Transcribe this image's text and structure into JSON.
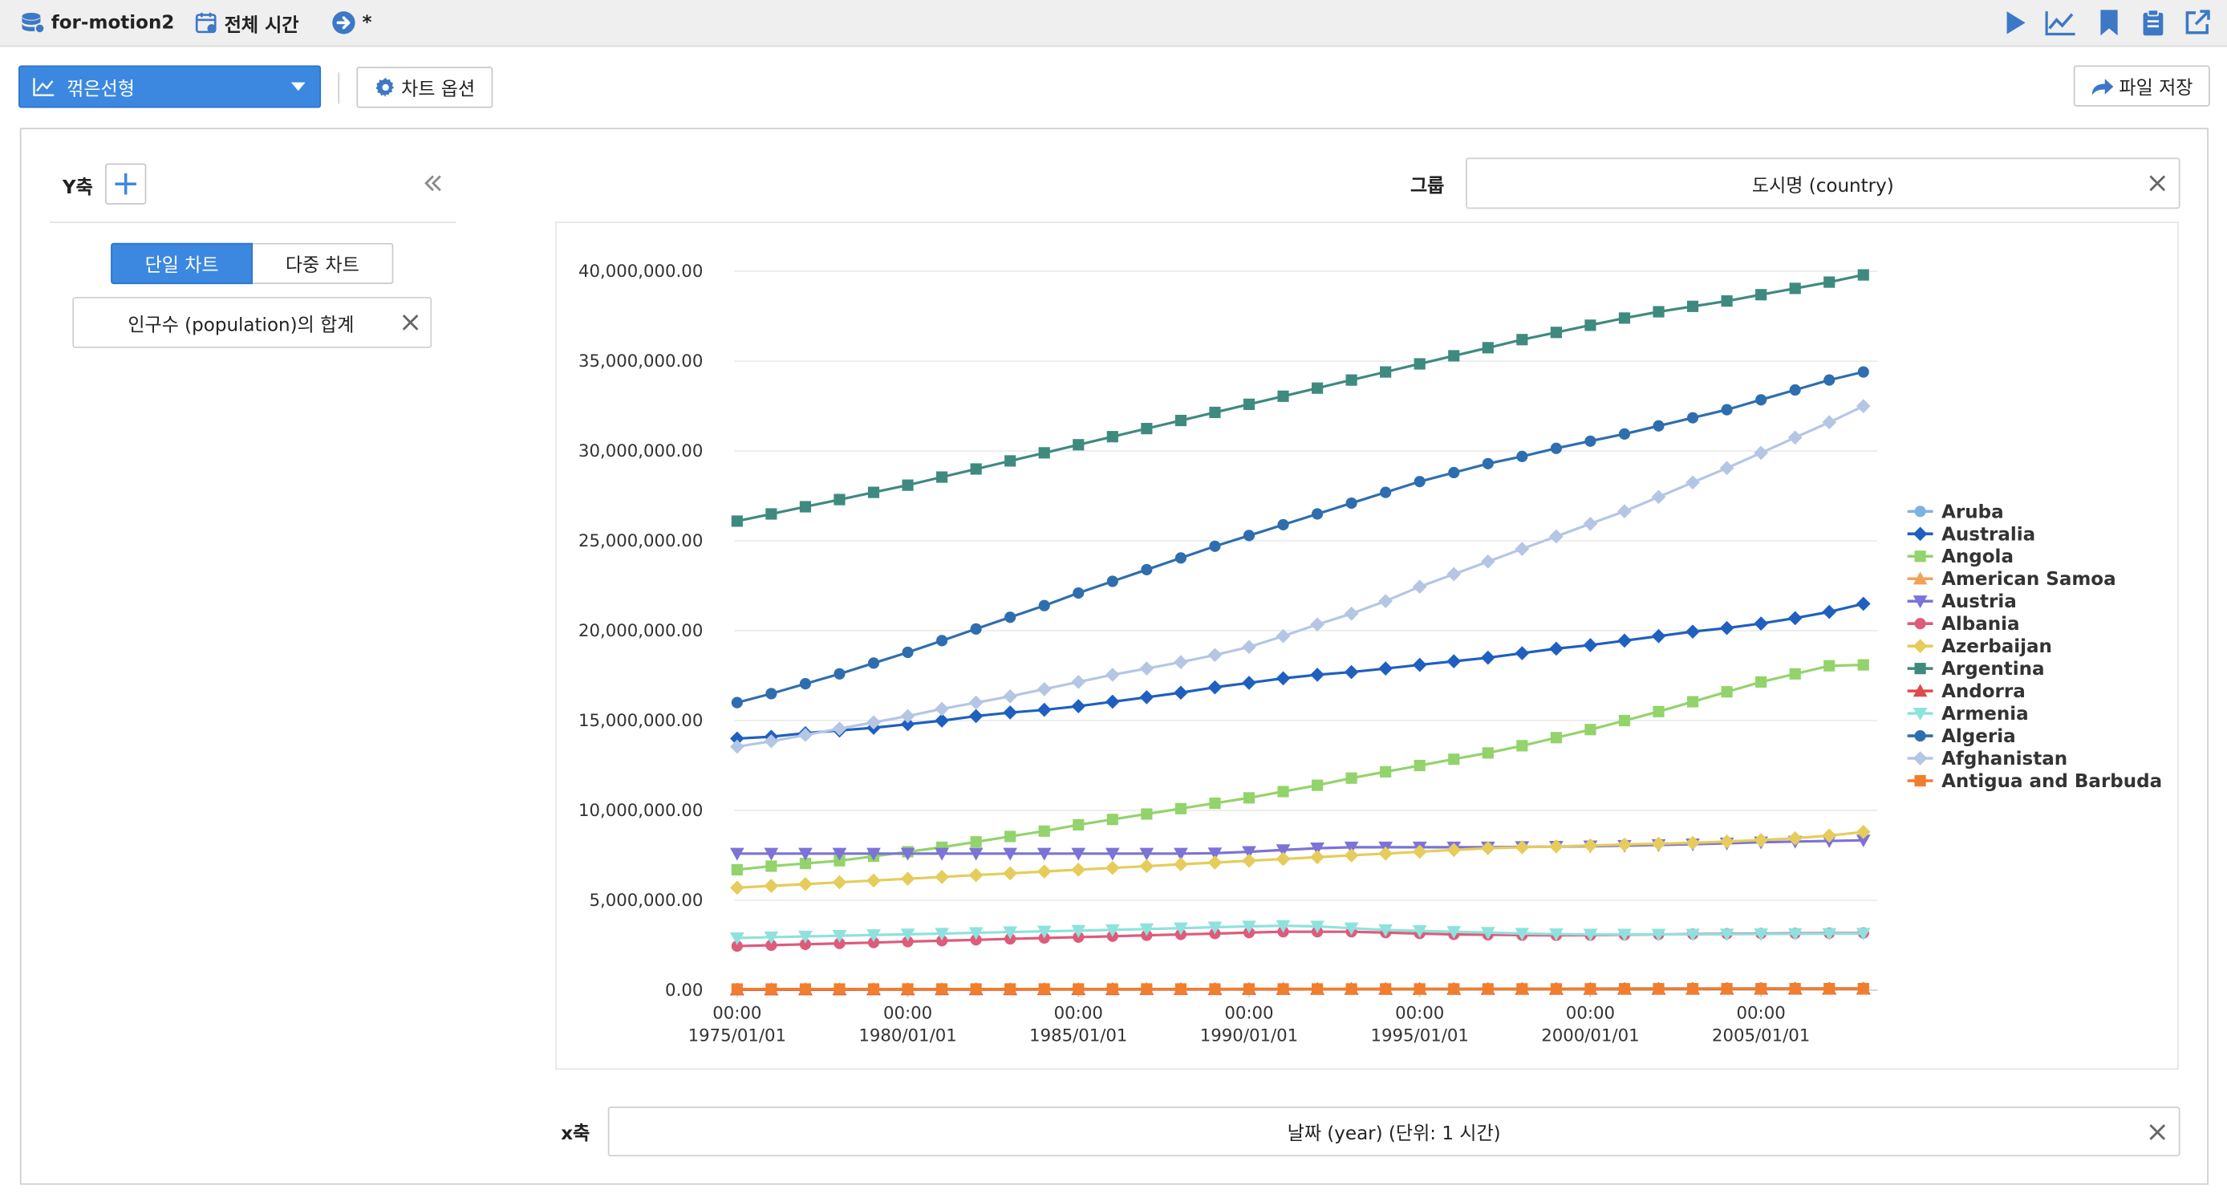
{
  "topbar": {
    "app_name": "for-motion2",
    "time_label": "전체 시간",
    "status_label": "*"
  },
  "toolbar": {
    "chart_type_label": "꺾은선형",
    "chart_options_label": "차트 옵션",
    "save_file_label": "파일 저장"
  },
  "left_panel": {
    "y_axis_title": "Y축",
    "tab_single": "단일 차트",
    "tab_multi": "다중 차트",
    "y_field_value": "인구수 (population)의 합계"
  },
  "group": {
    "label": "그룹",
    "value": "도시명 (country)"
  },
  "x_axis": {
    "label": "x축",
    "value": "날짜 (year) (단위: 1 시간)"
  },
  "colors": {
    "accent": "#3c88e0"
  },
  "chart_data": {
    "type": "line",
    "x": [
      "1975",
      "1976",
      "1977",
      "1978",
      "1979",
      "1980",
      "1981",
      "1982",
      "1983",
      "1984",
      "1985",
      "1986",
      "1987",
      "1988",
      "1989",
      "1990",
      "1991",
      "1992",
      "1993",
      "1994",
      "1995",
      "1996",
      "1997",
      "1998",
      "1999",
      "2000",
      "2001",
      "2002",
      "2003",
      "2004",
      "2005",
      "2006",
      "2007",
      "2008"
    ],
    "x_tick_labels": [
      {
        "year": 1975,
        "line1": "00:00",
        "line2": "1975/01/01"
      },
      {
        "year": 1980,
        "line1": "00:00",
        "line2": "1980/01/01"
      },
      {
        "year": 1985,
        "line1": "00:00",
        "line2": "1985/01/01"
      },
      {
        "year": 1990,
        "line1": "00:00",
        "line2": "1990/01/01"
      },
      {
        "year": 1995,
        "line1": "00:00",
        "line2": "1995/01/01"
      },
      {
        "year": 2000,
        "line1": "00:00",
        "line2": "2000/01/01"
      },
      {
        "year": 2005,
        "line1": "00:00",
        "line2": "2005/01/01"
      }
    ],
    "y_tick_labels": [
      "0.00",
      "5,000,000.00",
      "10,000,000.00",
      "15,000,000.00",
      "20,000,000.00",
      "25,000,000.00",
      "30,000,000.00",
      "35,000,000.00",
      "40,000,000.00"
    ],
    "ylim": [
      0,
      40000000
    ],
    "grid": true,
    "legend_position": "right",
    "series": [
      {
        "name": "Aruba",
        "color": "#7fb2e3",
        "marker": "circle",
        "values": [
          60000,
          60000,
          60000,
          61000,
          61000,
          61000,
          61000,
          62000,
          62000,
          62000,
          62000,
          63000,
          63000,
          63000,
          63000,
          64000,
          64000,
          65000,
          66000,
          68000,
          71000,
          74000,
          77000,
          80000,
          82000,
          90000,
          92000,
          94000,
          96000,
          98000,
          100000,
          101000,
          102000,
          103000
        ]
      },
      {
        "name": "Australia",
        "color": "#1f5fbf",
        "marker": "diamond",
        "values": [
          14000000,
          14100000,
          14300000,
          14450000,
          14600000,
          14800000,
          15000000,
          15250000,
          15450000,
          15600000,
          15800000,
          16050000,
          16300000,
          16550000,
          16850000,
          17100000,
          17350000,
          17550000,
          17700000,
          17900000,
          18100000,
          18300000,
          18500000,
          18750000,
          19000000,
          19200000,
          19450000,
          19700000,
          19950000,
          20150000,
          20400000,
          20700000,
          21050000,
          21500000
        ]
      },
      {
        "name": "Angola",
        "color": "#93d36b",
        "marker": "square",
        "values": [
          6700000,
          6900000,
          7050000,
          7200000,
          7450000,
          7700000,
          7950000,
          8250000,
          8550000,
          8850000,
          9200000,
          9500000,
          9800000,
          10100000,
          10400000,
          10700000,
          11050000,
          11400000,
          11800000,
          12150000,
          12500000,
          12850000,
          13200000,
          13600000,
          14050000,
          14500000,
          15000000,
          15500000,
          16050000,
          16600000,
          17150000,
          17600000,
          18050000,
          18100000
        ]
      },
      {
        "name": "American Samoa",
        "color": "#f0a35a",
        "marker": "triangle",
        "values": [
          30000,
          30000,
          31000,
          32000,
          33000,
          33000,
          33000,
          34000,
          35000,
          36000,
          37000,
          38000,
          39000,
          40000,
          42000,
          47000,
          48000,
          50000,
          51000,
          52000,
          53000,
          54000,
          55000,
          56000,
          57000,
          58000,
          59000,
          59000,
          60000,
          61000,
          62000,
          63000,
          64000,
          65000
        ]
      },
      {
        "name": "Austria",
        "color": "#7b73d6",
        "marker": "triangle-down",
        "values": [
          7600000,
          7600000,
          7600000,
          7600000,
          7600000,
          7600000,
          7600000,
          7600000,
          7600000,
          7600000,
          7600000,
          7600000,
          7600000,
          7600000,
          7620000,
          7700000,
          7800000,
          7900000,
          7950000,
          7950000,
          7950000,
          7950000,
          7950000,
          7970000,
          7990000,
          8010000,
          8040000,
          8080000,
          8120000,
          8170000,
          8230000,
          8270000,
          8300000,
          8340000
        ]
      },
      {
        "name": "Albania",
        "color": "#de5b7b",
        "marker": "circle",
        "values": [
          2450000,
          2500000,
          2550000,
          2600000,
          2650000,
          2700000,
          2750000,
          2800000,
          2850000,
          2900000,
          2950000,
          3000000,
          3050000,
          3100000,
          3150000,
          3200000,
          3250000,
          3250000,
          3250000,
          3200000,
          3150000,
          3100000,
          3080000,
          3060000,
          3050000,
          3060000,
          3080000,
          3100000,
          3120000,
          3140000,
          3150000,
          3160000,
          3170000,
          3180000
        ]
      },
      {
        "name": "Azerbaijan",
        "color": "#e6cc5a",
        "marker": "diamond",
        "values": [
          5700000,
          5800000,
          5900000,
          6000000,
          6100000,
          6200000,
          6300000,
          6400000,
          6500000,
          6600000,
          6700000,
          6800000,
          6900000,
          7000000,
          7100000,
          7200000,
          7300000,
          7400000,
          7500000,
          7600000,
          7700000,
          7800000,
          7900000,
          7950000,
          8000000,
          8050000,
          8100000,
          8150000,
          8200000,
          8270000,
          8350000,
          8450000,
          8600000,
          8800000
        ]
      },
      {
        "name": "Argentina",
        "color": "#3f8a7f",
        "marker": "square",
        "values": [
          26100000,
          26500000,
          26900000,
          27300000,
          27700000,
          28100000,
          28550000,
          29000000,
          29450000,
          29900000,
          30350000,
          30800000,
          31250000,
          31700000,
          32150000,
          32600000,
          33050000,
          33500000,
          33950000,
          34400000,
          34850000,
          35300000,
          35750000,
          36200000,
          36600000,
          37000000,
          37400000,
          37750000,
          38050000,
          38350000,
          38700000,
          39050000,
          39400000,
          39800000
        ]
      },
      {
        "name": "Andorra",
        "color": "#e04a4a",
        "marker": "triangle",
        "values": [
          30000,
          31000,
          33000,
          35000,
          37000,
          38000,
          39000,
          41000,
          43000,
          45000,
          47000,
          49000,
          51000,
          53000,
          55000,
          57000,
          59000,
          61000,
          62000,
          63000,
          64000,
          64000,
          65000,
          65000,
          66000,
          66000,
          67000,
          68000,
          70000,
          72000,
          74000,
          76000,
          78000,
          80000
        ]
      },
      {
        "name": "Armenia",
        "color": "#8ee2dd",
        "marker": "triangle-down",
        "values": [
          2900000,
          2950000,
          2990000,
          3030000,
          3070000,
          3110000,
          3150000,
          3190000,
          3230000,
          3270000,
          3310000,
          3350000,
          3400000,
          3450000,
          3500000,
          3550000,
          3580000,
          3550000,
          3450000,
          3350000,
          3300000,
          3250000,
          3200000,
          3150000,
          3120000,
          3100000,
          3100000,
          3100000,
          3100000,
          3110000,
          3120000,
          3130000,
          3140000,
          3150000
        ]
      },
      {
        "name": "Algeria",
        "color": "#2e6eae",
        "marker": "circle",
        "values": [
          16000000,
          16500000,
          17050000,
          17600000,
          18200000,
          18800000,
          19450000,
          20100000,
          20750000,
          21400000,
          22100000,
          22750000,
          23400000,
          24050000,
          24700000,
          25300000,
          25900000,
          26500000,
          27100000,
          27700000,
          28300000,
          28800000,
          29300000,
          29700000,
          30150000,
          30550000,
          30950000,
          31400000,
          31850000,
          32300000,
          32850000,
          33400000,
          33950000,
          34400000
        ]
      },
      {
        "name": "Afghanistan",
        "color": "#b4c6e4",
        "marker": "diamond",
        "values": [
          13550000,
          13850000,
          14200000,
          14550000,
          14900000,
          15250000,
          15650000,
          16000000,
          16350000,
          16750000,
          17150000,
          17550000,
          17900000,
          18250000,
          18650000,
          19100000,
          19700000,
          20350000,
          20950000,
          21650000,
          22450000,
          23150000,
          23850000,
          24550000,
          25250000,
          25950000,
          26650000,
          27450000,
          28250000,
          29050000,
          29900000,
          30750000,
          31600000,
          32500000
        ]
      },
      {
        "name": "Antigua and Barbuda",
        "color": "#f07e2e",
        "marker": "square",
        "values": [
          62000,
          63000,
          64000,
          65000,
          66000,
          66000,
          67000,
          67000,
          67000,
          67000,
          67000,
          67000,
          67000,
          67000,
          67000,
          68000,
          68000,
          68000,
          68000,
          69000,
          69000,
          70000,
          71000,
          72000,
          73000,
          75000,
          77000,
          79000,
          80000,
          81000,
          82000,
          83000,
          84000,
          85000
        ]
      }
    ]
  }
}
